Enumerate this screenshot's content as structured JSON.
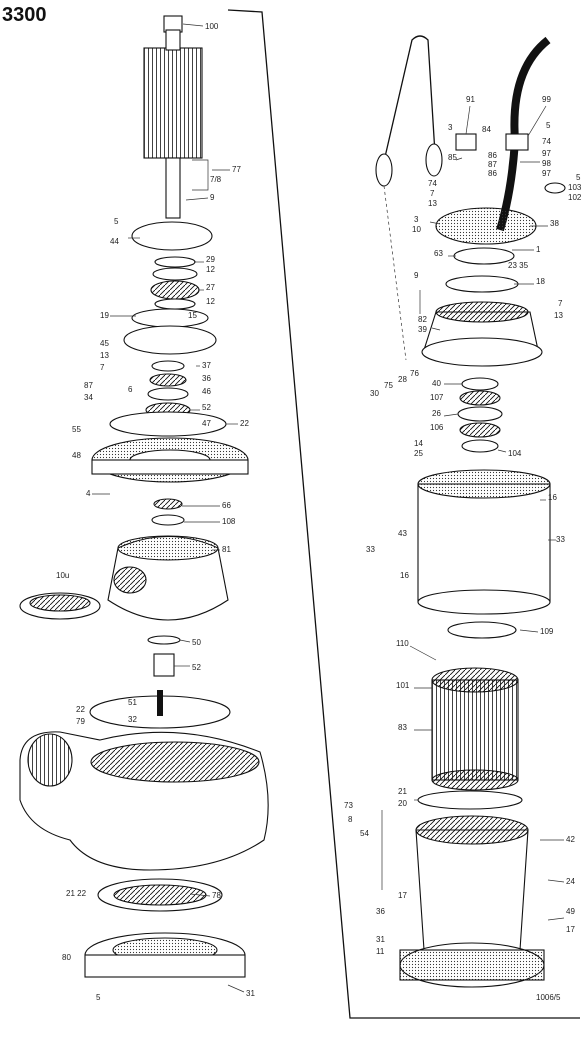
{
  "diagram": {
    "model": "3300",
    "corner_code": "1006/5",
    "left_labels": {
      "l100": "100",
      "l77": "77",
      "l7_8": "7/8",
      "l9a": "9",
      "l5a": "5",
      "l44": "44",
      "l29": "29",
      "l12a": "12",
      "l27": "27",
      "l12b": "12",
      "l19": "19",
      "l15": "15",
      "l45": "45",
      "l13": "13",
      "l7a": "7",
      "l37": "37",
      "l36": "36",
      "l46": "46",
      "l87": "87",
      "l34": "34",
      "l6": "6",
      "l52": "52",
      "l55": "55",
      "l47": "47",
      "l22a": "22",
      "l48": "48",
      "l4": "4",
      "l66": "66",
      "l108": "108",
      "l81": "81",
      "l10u": "10u",
      "l50": "50",
      "l52b": "52",
      "l51": "51",
      "l22b": "22",
      "l79": "79",
      "l32": "32",
      "l2122": "21 22",
      "l78": "78",
      "l80": "80",
      "l5b": "5",
      "l31a": "31"
    },
    "right_labels": {
      "r91": "91",
      "r99": "99",
      "r3a": "3",
      "r84": "84",
      "r5a": "5",
      "r74a": "74",
      "r85": "85",
      "r86a": "86",
      "r87": "87",
      "r86b": "86",
      "r97a": "97",
      "r98": "98",
      "r97b": "97",
      "r5b": "5",
      "r103": "103",
      "r102": "102",
      "r74b": "74",
      "r7a": "7",
      "r13a": "13",
      "r3b": "3",
      "r10": "10",
      "r38": "38",
      "r1": "1",
      "r63": "63",
      "r2335": "23 35",
      "r18": "18",
      "r9": "9",
      "r7b": "7",
      "r82": "82",
      "r39": "39",
      "r13b": "13",
      "r28": "28",
      "r76": "76",
      "r75": "75",
      "r30": "30",
      "r40": "40",
      "r107": "107",
      "r26": "26",
      "r106": "106",
      "r14": "14",
      "r25": "25",
      "r104": "104",
      "r16a": "16",
      "r43": "43",
      "r33a": "33",
      "r16b": "16",
      "r33b": "33",
      "r109": "109",
      "r110": "110",
      "r101": "101",
      "r83": "83",
      "r21": "21",
      "r20": "20",
      "r73": "73",
      "r8": "8",
      "r54": "54",
      "r42": "42",
      "r24": "24",
      "r17a": "17",
      "r36": "36",
      "r31": "31",
      "r11": "11",
      "r49": "49",
      "r17b": "17"
    }
  }
}
